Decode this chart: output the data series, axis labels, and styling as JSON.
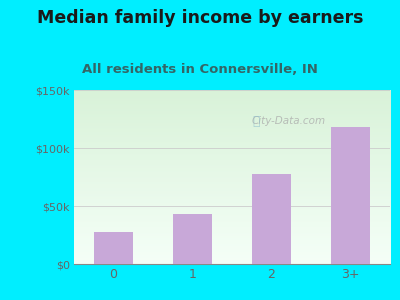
{
  "categories": [
    "0",
    "1",
    "2",
    "3+"
  ],
  "values": [
    28000,
    43000,
    78000,
    118000
  ],
  "bar_color": "#c8a8d8",
  "title": "Median family income by earners",
  "subtitle": "All residents in Connersville, IN",
  "title_fontsize": 12.5,
  "subtitle_fontsize": 9.5,
  "title_color": "#1a1a1a",
  "subtitle_color": "#336666",
  "ylim": [
    0,
    150000
  ],
  "yticks": [
    0,
    50000,
    100000,
    150000
  ],
  "ytick_labels": [
    "$0",
    "$50k",
    "$100k",
    "$150k"
  ],
  "outer_bg": "#00eeff",
  "plot_bg_topleft": "#d8efd8",
  "plot_bg_topright": "#e8f5e8",
  "plot_bg_bottom": "#f8fffc",
  "watermark": "City-Data.com",
  "watermark_color": "#aaaaaa",
  "tick_color": "#666666",
  "axis_color": "#888888",
  "grid_color": "#cccccc"
}
